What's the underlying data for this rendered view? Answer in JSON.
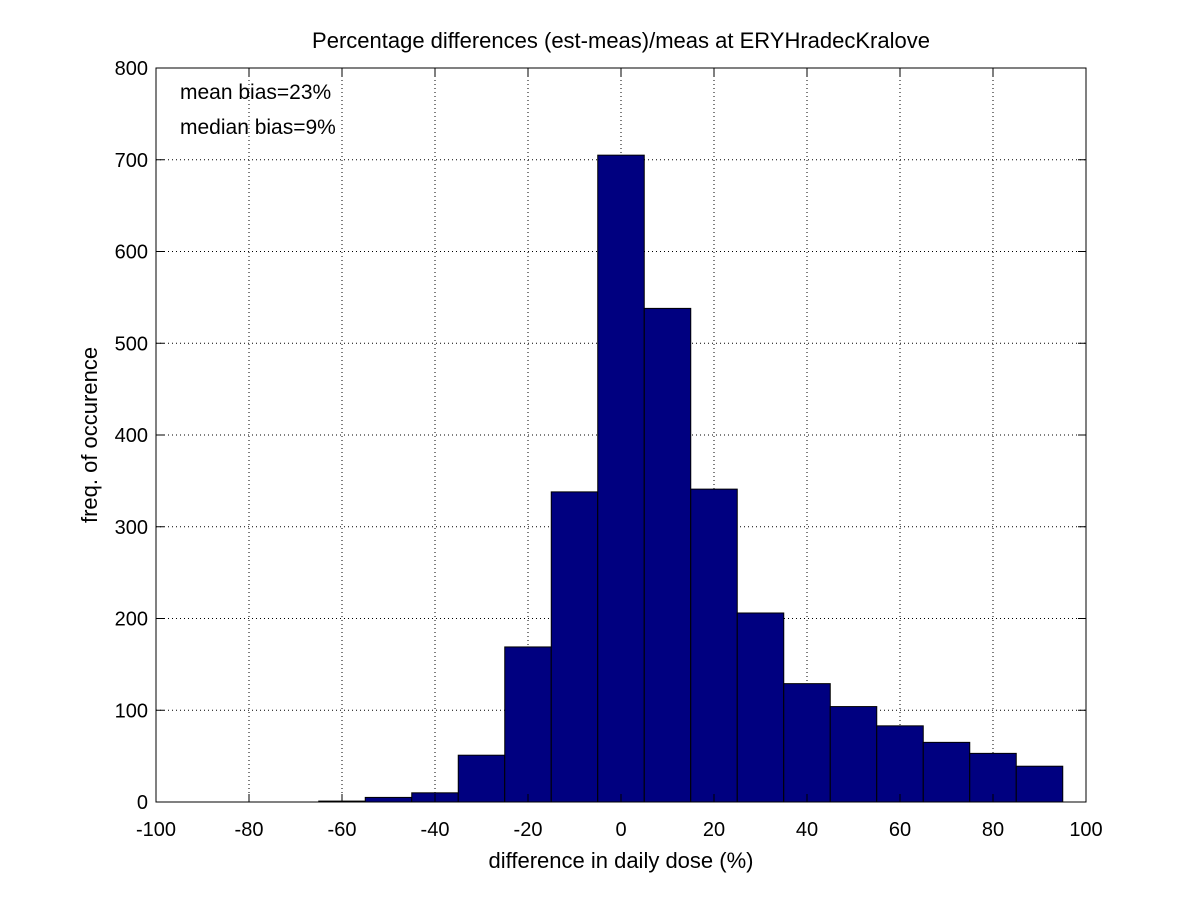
{
  "chart_data": {
    "type": "bar",
    "title": "Percentage differences (est-meas)/meas at ERYHradecKralove",
    "xlabel": "difference in daily dose (%)",
    "ylabel": "freq. of occurence",
    "xlim": [
      -100,
      100
    ],
    "ylim": [
      0,
      800
    ],
    "xticks": [
      -100,
      -80,
      -60,
      -40,
      -20,
      0,
      20,
      40,
      60,
      80,
      100
    ],
    "yticks": [
      0,
      100,
      200,
      300,
      400,
      500,
      600,
      700,
      800
    ],
    "grid": true,
    "bar_color": "#000080",
    "bin_width": 10,
    "bin_centers": [
      -90,
      -80,
      -70,
      -60,
      -50,
      -40,
      -30,
      -20,
      -10,
      0,
      10,
      20,
      30,
      40,
      50,
      60,
      70,
      80,
      90
    ],
    "values": [
      0,
      0,
      0,
      1,
      5,
      10,
      51,
      169,
      338,
      705,
      538,
      341,
      206,
      129,
      104,
      83,
      65,
      53,
      39
    ],
    "annotations": [
      "mean bias=23%",
      "median bias=9%"
    ]
  }
}
